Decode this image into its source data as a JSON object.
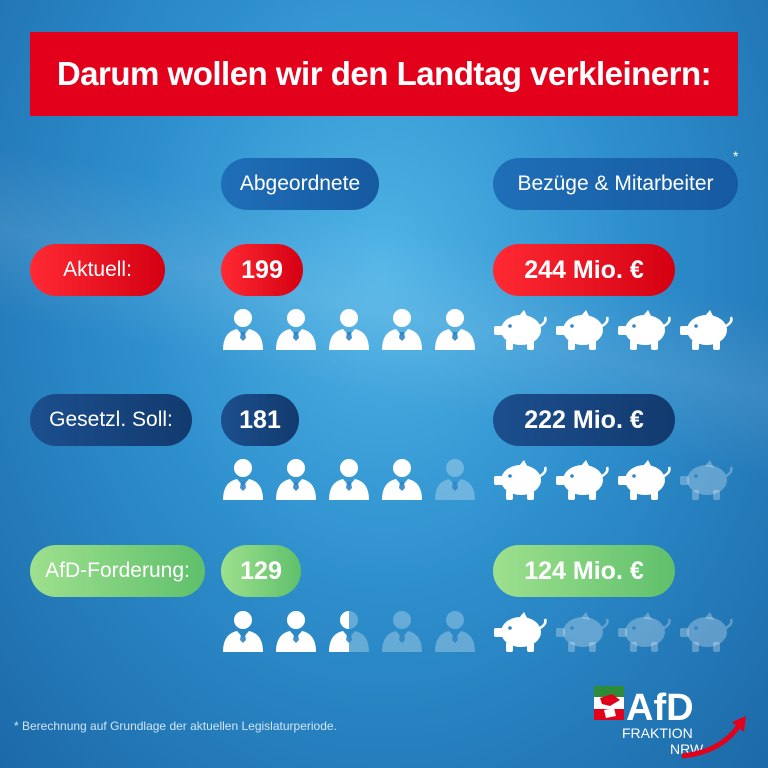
{
  "title": "Darum wollen wir den Landtag verkleinern:",
  "headers": {
    "deputies": "Abgeordnete",
    "costs": "Bezüge & Mitarbeiter",
    "asterisk": "*"
  },
  "rows": [
    {
      "label": "Aktuell:",
      "deputies": "199",
      "costs": "244 Mio. €",
      "person_fill": 5,
      "pig_fill": 4,
      "color": "#e3001b"
    },
    {
      "label": "Gesetzl. Soll:",
      "deputies": "181",
      "costs": "222 Mio. €",
      "person_fill": 4,
      "pig_fill": 3,
      "color": "#163f78"
    },
    {
      "label": "AfD-Forderung:",
      "deputies": "129",
      "costs": "124 Mio. €",
      "person_fill": 2.5,
      "pig_fill": 1,
      "color": "#7ed07a"
    }
  ],
  "icon_counts": {
    "person": 5,
    "pig": 4
  },
  "icons": {
    "person": "person-icon",
    "pig": "piggy-bank-icon"
  },
  "footnote": "* Berechnung auf Grundlage der aktuellen Legislaturperiode.",
  "logo": {
    "brand": "AfD",
    "line1": "FRAKTION",
    "line2": "NRW"
  }
}
